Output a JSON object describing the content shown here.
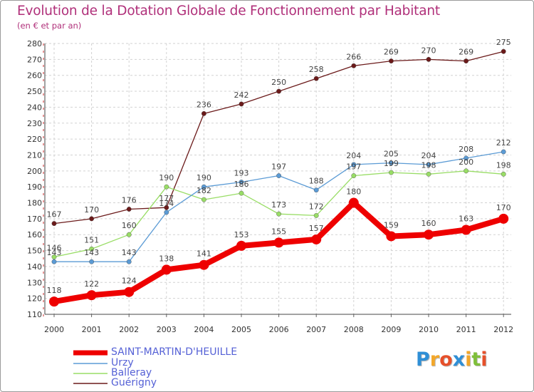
{
  "title": "Evolution de la Dotation Globale de Fonctionnement par Habitant",
  "subtitle": "(en € et par an)",
  "logo": {
    "text": "Proxiti",
    "colors": [
      "#2f8fd6",
      "#f3a72a",
      "#e6502a",
      "#2f8fd6",
      "#f3a72a",
      "#7fbf3a",
      "#e6502a"
    ]
  },
  "chart_data": {
    "type": "line",
    "title": "Evolution de la Dotation Globale de Fonctionnement par Habitant",
    "ylabel": "(en € et par an)",
    "xlabel": "",
    "ylim": [
      110,
      280
    ],
    "yticks": [
      110,
      120,
      130,
      140,
      150,
      160,
      170,
      180,
      190,
      200,
      210,
      220,
      230,
      240,
      250,
      260,
      270,
      280
    ],
    "x": [
      "2000",
      "2001",
      "2002",
      "2003",
      "2004",
      "2005",
      "2006",
      "2007",
      "2008",
      "2009",
      "2010",
      "2011",
      "2012"
    ],
    "grid": true,
    "series": [
      {
        "name": "SAINT-MARTIN-D'HEUILLE",
        "color": "#ee0000",
        "values": [
          118,
          122,
          124,
          138,
          141,
          153,
          155,
          157,
          180,
          159,
          160,
          163,
          170
        ],
        "labels": [
          "118",
          "122",
          "124",
          "138",
          "141",
          "153",
          "155",
          "157",
          "180",
          "159",
          "160",
          "163",
          "170"
        ]
      },
      {
        "name": "Urzy",
        "color": "#5b9bd5",
        "values": [
          143,
          143,
          143,
          174,
          190,
          193,
          197,
          188,
          204,
          205,
          204,
          208,
          212
        ],
        "labels": [
          "143",
          "143",
          "143",
          "174",
          "190",
          "193",
          "197",
          "188",
          "204",
          "205",
          "204",
          "208",
          "212"
        ]
      },
      {
        "name": "Balleray",
        "color": "#99dd66",
        "values": [
          146,
          151,
          160,
          190,
          182,
          186,
          173,
          172,
          197,
          199,
          198,
          200,
          198
        ],
        "labels": [
          "146",
          "151",
          "160",
          "190",
          "182",
          "186",
          "173",
          "172",
          "197",
          "199",
          "198",
          "200",
          "198"
        ]
      },
      {
        "name": "Guérigny",
        "color": "#6b1a1a",
        "values": [
          167,
          170,
          176,
          177,
          236,
          242,
          250,
          258,
          266,
          269,
          270,
          269,
          275
        ],
        "labels": [
          "167",
          "170",
          "176",
          "177",
          "236",
          "242",
          "250",
          "258",
          "266",
          "269",
          "270",
          "269",
          "275"
        ]
      }
    ]
  }
}
